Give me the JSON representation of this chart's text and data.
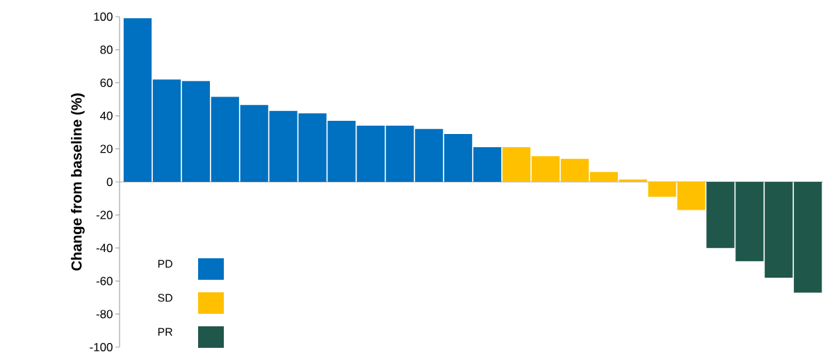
{
  "chart_data": {
    "type": "bar",
    "ylabel": "Change from baseline (%)",
    "categories": [
      null,
      null,
      null,
      null,
      null,
      null,
      null,
      null,
      null,
      null,
      null,
      null,
      null,
      null,
      null,
      null,
      null,
      null,
      null,
      null,
      null,
      null,
      null,
      null
    ],
    "series": [
      {
        "name": "PD",
        "color": "#0070c0",
        "values": [
          99,
          62,
          61,
          51.5,
          46.5,
          43,
          41.5,
          37,
          34,
          34,
          32,
          29,
          21,
          null,
          null,
          null,
          null,
          null,
          null,
          null,
          null,
          null,
          null,
          null
        ]
      },
      {
        "name": "SD",
        "color": "#ffc000",
        "values": [
          null,
          null,
          null,
          null,
          null,
          null,
          null,
          null,
          null,
          null,
          null,
          null,
          null,
          21,
          15.5,
          14,
          6,
          1.5,
          -9,
          -17,
          null,
          null,
          null,
          null
        ]
      },
      {
        "name": "PR",
        "color": "#1f574b",
        "values": [
          null,
          null,
          null,
          null,
          null,
          null,
          null,
          null,
          null,
          null,
          null,
          null,
          null,
          null,
          null,
          null,
          null,
          null,
          null,
          null,
          -40,
          -48,
          -58,
          -67
        ]
      }
    ],
    "ylim": [
      -100,
      100
    ],
    "yticks": [
      -100,
      -80,
      -60,
      -40,
      -20,
      0,
      20,
      40,
      60,
      80,
      100
    ],
    "tick_labels": "y",
    "legend": "bottom left"
  }
}
